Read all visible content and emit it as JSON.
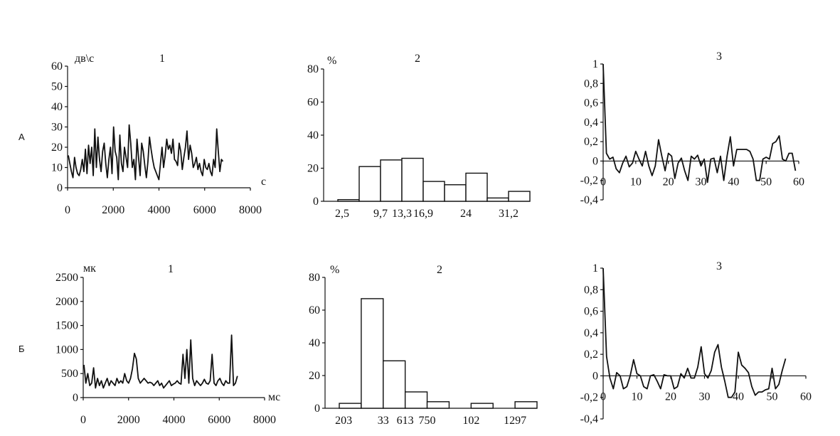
{
  "rows": [
    {
      "label": "А"
    },
    {
      "label": "Б"
    }
  ],
  "chart_data": [
    {
      "type": "line",
      "panel_number": "1",
      "ylabel": "дв\\с",
      "xlabel": "с",
      "xlim": [
        0,
        8000
      ],
      "ylim": [
        0,
        60
      ],
      "xticks": [
        "0",
        "2000",
        "4000",
        "6000",
        "8000"
      ],
      "yticks": [
        "0",
        "10",
        "20",
        "30",
        "40",
        "50",
        "60"
      ],
      "x_start": 30,
      "x_end": 6800,
      "values": [
        16,
        12,
        8,
        5,
        15,
        10,
        7,
        6,
        9,
        14,
        8,
        19,
        7,
        21,
        12,
        20,
        6,
        29,
        10,
        25,
        14,
        8,
        18,
        22,
        12,
        5,
        14,
        20,
        7,
        30,
        18,
        15,
        4,
        26,
        12,
        8,
        20,
        15,
        10,
        31,
        22,
        10,
        14,
        4,
        24,
        15,
        6,
        22,
        18,
        11,
        5,
        13,
        25,
        19,
        14,
        10,
        8,
        6,
        4,
        12,
        20,
        10,
        16,
        24,
        19,
        21,
        17,
        24,
        14,
        13,
        11,
        22,
        18,
        9,
        15,
        20,
        28,
        14,
        21,
        17,
        10,
        12,
        15,
        9,
        12,
        8,
        6,
        14,
        10,
        9,
        12,
        8,
        6,
        14,
        10,
        29,
        18,
        8,
        14,
        13
      ]
    },
    {
      "type": "bar",
      "panel_number": "2",
      "ylabel": "%",
      "ylim": [
        0,
        80
      ],
      "yticks": [
        "0",
        "20",
        "40",
        "60",
        "80"
      ],
      "values": [
        1,
        21,
        25,
        26,
        12,
        10,
        17,
        2,
        6
      ],
      "xtick_labels": [
        "2,5",
        "9,7",
        "13,3",
        "16,9",
        "24",
        "31,2"
      ]
    },
    {
      "type": "line",
      "panel_number": "3",
      "xlim": [
        0,
        60
      ],
      "ylim": [
        -0.4,
        1
      ],
      "xticks": [
        "0",
        "10",
        "20",
        "30",
        "40",
        "50",
        "60"
      ],
      "yticks": [
        "-0,4",
        "-0,2",
        "0",
        "0,2",
        "0,4",
        "0,6",
        "0,8",
        "1"
      ],
      "values": [
        1,
        0.08,
        0.02,
        0.04,
        -0.08,
        -0.12,
        -0.02,
        0.05,
        -0.06,
        -0.02,
        0.1,
        0.02,
        -0.05,
        0.1,
        -0.05,
        -0.15,
        -0.05,
        0.22,
        0.05,
        -0.1,
        0.08,
        0.05,
        -0.18,
        -0.02,
        0.03,
        -0.1,
        -0.2,
        0.05,
        0.02,
        0.06,
        -0.05,
        0.02,
        -0.22,
        0.02,
        0.03,
        -0.12,
        0.05,
        -0.2,
        0.05,
        0.25,
        -0.05,
        0.12,
        0.12,
        0.12,
        0.12,
        0.1,
        0.02,
        -0.2,
        -0.2,
        0.02,
        0.04,
        0.02,
        0.18,
        0.2,
        0.26,
        0.02,
        0,
        0.08,
        0.08,
        -0.1
      ]
    },
    {
      "type": "line",
      "panel_number": "1",
      "ylabel": "мк",
      "xlabel": "мс",
      "xlim": [
        0,
        8000
      ],
      "ylim": [
        0,
        2500
      ],
      "xticks": [
        "0",
        "2000",
        "4000",
        "6000",
        "8000"
      ],
      "yticks": [
        "0",
        "500",
        "1000",
        "1500",
        "2000",
        "2500"
      ],
      "x_start": 30,
      "x_end": 6800,
      "values": [
        680,
        300,
        500,
        250,
        300,
        620,
        200,
        400,
        250,
        350,
        200,
        300,
        400,
        250,
        350,
        300,
        250,
        400,
        300,
        350,
        300,
        500,
        350,
        300,
        400,
        600,
        920,
        800,
        400,
        300,
        350,
        400,
        350,
        300,
        320,
        300,
        250,
        300,
        350,
        250,
        300,
        200,
        250,
        300,
        350,
        250,
        280,
        300,
        350,
        300,
        280,
        900,
        400,
        1000,
        300,
        1200,
        400,
        250,
        350,
        300,
        250,
        300,
        380,
        300,
        280,
        350,
        900,
        300,
        250,
        350,
        400,
        300,
        250,
        350,
        300,
        300,
        1300,
        250,
        300,
        450
      ]
    },
    {
      "type": "bar",
      "panel_number": "2",
      "ylabel": "%",
      "ylim": [
        0,
        80
      ],
      "yticks": [
        "0",
        "20",
        "40",
        "60",
        "80"
      ],
      "values": [
        3,
        67,
        29,
        10,
        4,
        0,
        3,
        0,
        4
      ],
      "xtick_labels": [
        "203",
        "33",
        "613",
        "750",
        "102",
        "1297"
      ]
    },
    {
      "type": "line",
      "panel_number": "3",
      "xlim": [
        0,
        60
      ],
      "ylim": [
        -0.4,
        1
      ],
      "xticks": [
        "0",
        "10",
        "20",
        "30",
        "40",
        "50",
        "60"
      ],
      "yticks": [
        "-0,4",
        "-0,2",
        "0",
        "0,2",
        "0,4",
        "0,6",
        "0,8",
        "1"
      ],
      "values": [
        1,
        0.18,
        -0.02,
        -0.12,
        0.03,
        0,
        -0.12,
        -0.1,
        0,
        0.15,
        0.02,
        0,
        -0.1,
        -0.12,
        0,
        0.01,
        -0.05,
        -0.12,
        0.01,
        0,
        0,
        -0.12,
        -0.1,
        0.02,
        -0.02,
        0.07,
        -0.02,
        -0.02,
        0.08,
        0.27,
        0.02,
        -0.02,
        0.05,
        0.22,
        0.29,
        0.08,
        -0.05,
        -0.2,
        -0.2,
        -0.15,
        0.22,
        0.1,
        0.07,
        0.03,
        -0.1,
        -0.18,
        -0.15,
        -0.15,
        -0.13,
        -0.12,
        0.07,
        -0.12,
        -0.08,
        0.05,
        0.16
      ]
    }
  ]
}
